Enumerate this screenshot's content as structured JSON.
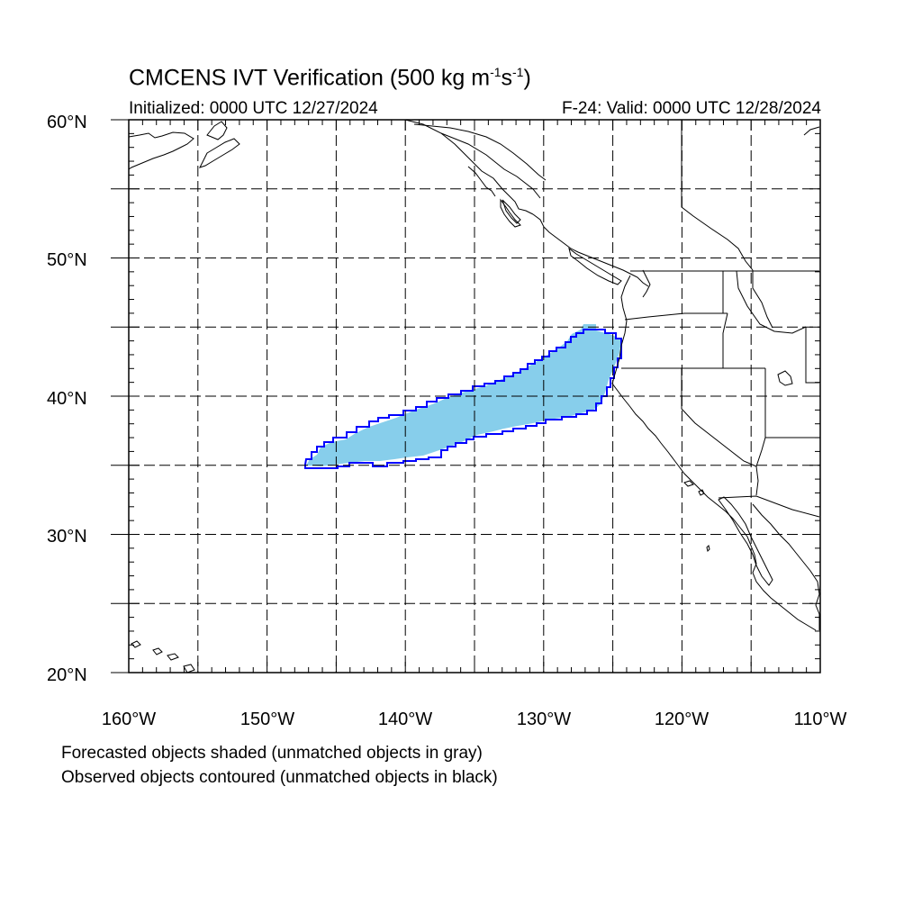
{
  "title": {
    "main": "CMCENS IVT Verification (500 kg m",
    "sup1": "-1",
    "mid": "s",
    "sup2": "-1",
    "end": ")"
  },
  "initialized": "Initialized: 0000 UTC 12/27/2024",
  "valid": "F-24: Valid: 0000 UTC 12/28/2024",
  "lat_labels": [
    "60°N",
    "50°N",
    "40°N",
    "30°N",
    "20°N"
  ],
  "lon_labels": [
    "160°W",
    "150°W",
    "140°W",
    "130°W",
    "120°W",
    "110°W"
  ],
  "map": {
    "extent": {
      "lon": [
        -160,
        -110
      ],
      "lat": [
        20,
        60
      ]
    },
    "grid_lines": "dashed",
    "grid_lon_step": 5,
    "grid_lat_step": 5,
    "forecast_color": "#87ceeb",
    "observed_color": "#0000ff",
    "coastline_color": "#000000"
  },
  "captions": {
    "line1": "Forecasted objects shaded (unmatched objects in gray)",
    "line2": "Observed objects contoured (unmatched objects in black)"
  }
}
